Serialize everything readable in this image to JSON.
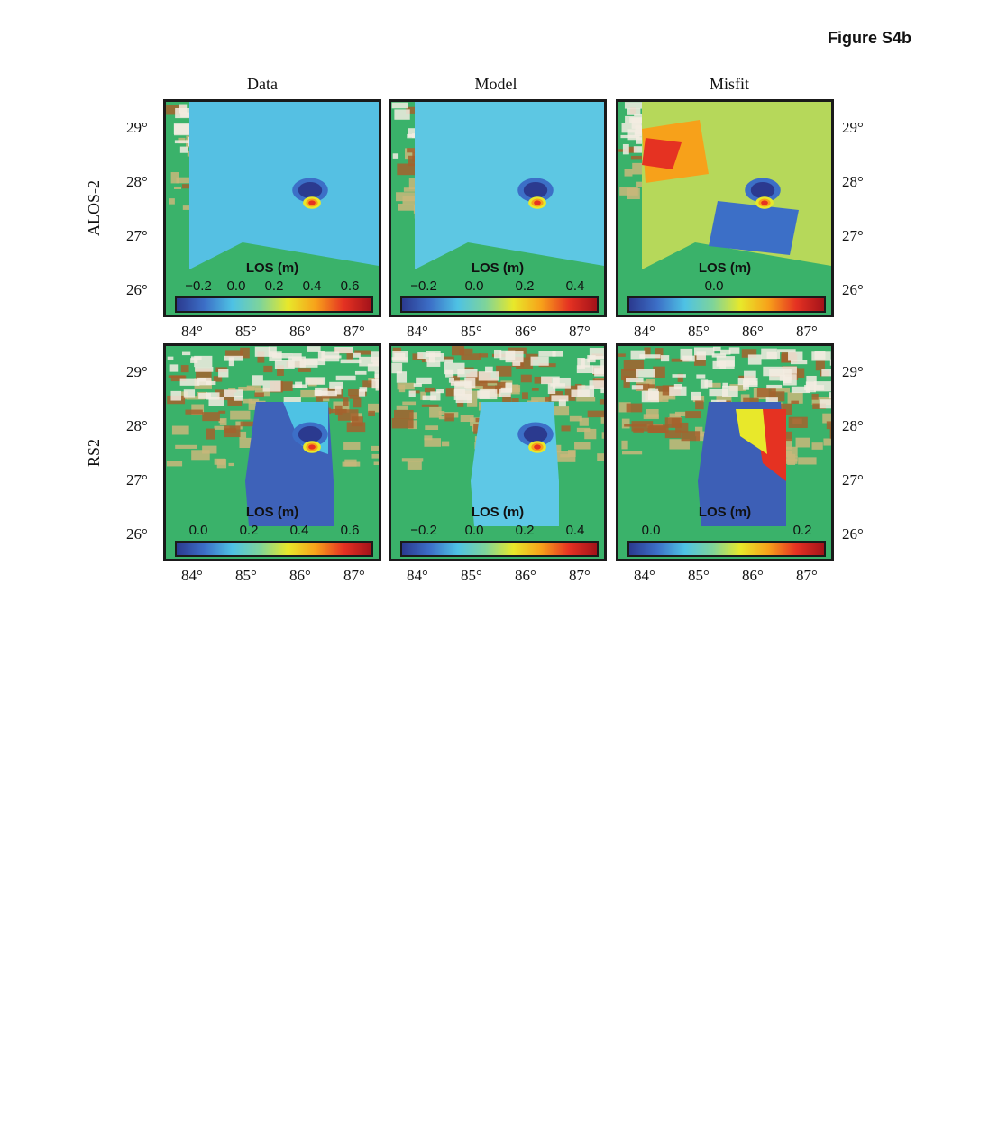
{
  "figure_title": "Figure S4b",
  "columns": [
    "Data",
    "Model",
    "Misfit"
  ],
  "rows": [
    "ALOS-2",
    "RS2"
  ],
  "x_ticks": [
    "84°",
    "85°",
    "86°",
    "87°"
  ],
  "y_ticks": [
    "29°",
    "28°",
    "27°",
    "26°"
  ],
  "colorbar_label": "LOS (m)",
  "colormap": [
    "#2b3a8f",
    "#3c6fc7",
    "#4ec2e4",
    "#7ed49a",
    "#e8e82a",
    "#f7a11a",
    "#e53222",
    "#a3121a"
  ],
  "terrain_colors": {
    "lowland": "#3ab26a",
    "foothill": "#c9b77a",
    "mountain": "#a4612d",
    "peak": "#f3ece2"
  },
  "panels": [
    {
      "row": "ALOS-2",
      "column": "Data",
      "colorbar_ticks": [
        "−0.2",
        "0.0",
        "0.2",
        "0.4",
        "0.6"
      ],
      "base_color": "#55c0e3"
    },
    {
      "row": "ALOS-2",
      "column": "Model",
      "colorbar_ticks": [
        "−0.2",
        "0.0",
        "0.2",
        "0.4"
      ],
      "base_color": "#5dc7e3"
    },
    {
      "row": "ALOS-2",
      "column": "Misfit",
      "colorbar_ticks": [
        "0.0"
      ],
      "base_color": "#b6d85a"
    },
    {
      "row": "RS2",
      "column": "Data",
      "colorbar_ticks": [
        "0.0",
        "0.2",
        "0.4",
        "0.6"
      ],
      "base_color": "#3e62b9"
    },
    {
      "row": "RS2",
      "column": "Model",
      "colorbar_ticks": [
        "−0.2",
        "0.0",
        "0.2",
        "0.4"
      ],
      "base_color": "#5ec8e6"
    },
    {
      "row": "RS2",
      "column": "Misfit",
      "colorbar_ticks": [
        "0.0",
        "0.2"
      ],
      "base_color": "#3d5fb6"
    }
  ]
}
